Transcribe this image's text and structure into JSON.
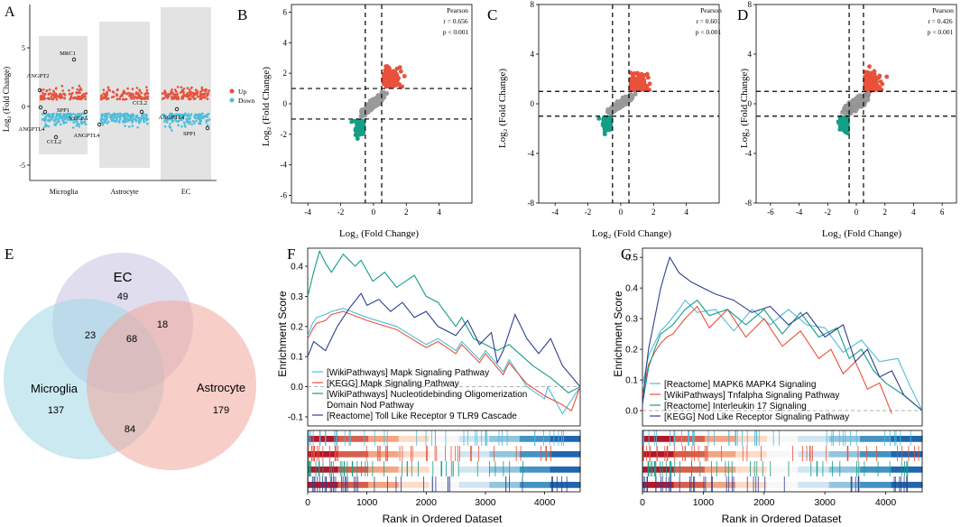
{
  "colors": {
    "up": "#e8513b",
    "down": "#4fbcd9",
    "teal": "#159e86",
    "navy": "#3a5a9c",
    "grey": "#999999",
    "light_blue": "#6cc3dc"
  },
  "panels": {
    "A": {
      "letter": "A",
      "ylabel": "Log₂ (Fold Change)"
    },
    "B": {
      "letter": "B",
      "pearson_title": "Pearson",
      "pearson_r": "r = 0.656",
      "pearson_p": "p < 0.001"
    },
    "C": {
      "letter": "C",
      "pearson_title": "Pearson",
      "pearson_r": "r = 0.601",
      "pearson_p": "p < 0.001"
    },
    "D": {
      "letter": "D",
      "pearson_title": "Pearson",
      "pearson_r": "r = 0.426",
      "pearson_p": "p < 0.001"
    },
    "E": {
      "letter": "E"
    },
    "F": {
      "letter": "F"
    },
    "G": {
      "letter": "G"
    }
  },
  "axis_label_fc": "Log₂ (Fold Change)",
  "gsea_axis": {
    "ylabel": "Enrichment Score",
    "xlabel": "Rank in Ordered Dataset"
  },
  "chart_data": [
    {
      "id": "A",
      "type": "scatter",
      "title": "",
      "xlabel": "",
      "ylabel": "Log2 (Fold Change)",
      "ylim": [
        -6.5,
        8
      ],
      "categories": [
        "Microglia",
        "Astrocyte",
        "EC"
      ],
      "yticks": [
        "-5",
        "0",
        "5"
      ],
      "legend": [
        {
          "name": "Up",
          "color": "#e8513b"
        },
        {
          "name": "Down",
          "color": "#4fbcd9"
        }
      ],
      "annotations": [
        "ANGPT2",
        "SPP1",
        "ANGPTL4",
        "CCL2",
        "MRC1",
        "VEGFA",
        "ANGPTL4",
        "CCL2",
        "ANGPTL4",
        "SPP1"
      ]
    },
    {
      "id": "B",
      "type": "scatter",
      "xlabel": "Log2 (Fold Change)",
      "ylabel": "Log2 (Fold Change)",
      "xlim": [
        -5,
        6
      ],
      "ylim": [
        -6.5,
        6.5
      ],
      "xticks": [
        "-4",
        "-2",
        "0",
        "2",
        "4"
      ],
      "yticks": [
        "-6",
        "-4",
        "-2",
        "0",
        "2",
        "4",
        "6"
      ],
      "pearson_r": 0.656,
      "pearson_p": "< 0.001",
      "thresholds": {
        "x": [
          -0.5,
          0.5
        ],
        "y": [
          -1,
          1
        ]
      }
    },
    {
      "id": "C",
      "type": "scatter",
      "xlabel": "Log2 (Fold Change)",
      "ylabel": "Log2 (Fold Change)",
      "xlim": [
        -5,
        6
      ],
      "ylim": [
        -8,
        8
      ],
      "xticks": [
        "-4",
        "-2",
        "0",
        "2",
        "4"
      ],
      "yticks": [
        "-8",
        "-4",
        "0",
        "4",
        "8"
      ],
      "pearson_r": 0.601,
      "pearson_p": "< 0.001",
      "thresholds": {
        "x": [
          -0.5,
          0.5
        ],
        "y": [
          -1,
          1
        ]
      }
    },
    {
      "id": "D",
      "type": "scatter",
      "xlabel": "Log2 (Fold Change)",
      "ylabel": "Log2 (Fold Change)",
      "xlim": [
        -7,
        7
      ],
      "ylim": [
        -8,
        8
      ],
      "xticks": [
        "-6",
        "-4",
        "-2",
        "0",
        "2",
        "4",
        "6"
      ],
      "yticks": [
        "-8",
        "-4",
        "0",
        "4",
        "8"
      ],
      "pearson_r": 0.426,
      "pearson_p": "< 0.001",
      "thresholds": {
        "x": [
          -0.5,
          0.5
        ],
        "y": [
          -1,
          1
        ]
      }
    },
    {
      "id": "E",
      "type": "venn",
      "sets": [
        {
          "name": "EC",
          "color": "#c7c1e0"
        },
        {
          "name": "Microglia",
          "color": "#9fd7e6"
        },
        {
          "name": "Astrocyte",
          "color": "#f2a59b"
        }
      ],
      "regions": [
        {
          "sets": [
            "EC"
          ],
          "value": 49
        },
        {
          "sets": [
            "Microglia"
          ],
          "value": 137
        },
        {
          "sets": [
            "Astrocyte"
          ],
          "value": 179
        },
        {
          "sets": [
            "EC",
            "Microglia"
          ],
          "value": 23
        },
        {
          "sets": [
            "EC",
            "Astrocyte"
          ],
          "value": 18
        },
        {
          "sets": [
            "Microglia",
            "Astrocyte"
          ],
          "value": 84
        },
        {
          "sets": [
            "EC",
            "Microglia",
            "Astrocyte"
          ],
          "value": 68
        }
      ]
    },
    {
      "id": "F",
      "type": "line",
      "title": "",
      "xlabel": "Rank in Ordered Dataset",
      "ylabel": "Enrichment Score",
      "xlim": [
        0,
        4600
      ],
      "ylim": [
        -0.13,
        0.46
      ],
      "xticks": [
        "0",
        "1000",
        "2000",
        "3000",
        "4000"
      ],
      "yticks": [
        "-0.1",
        "0.0",
        "0.1",
        "0.2",
        "0.3",
        "0.4"
      ],
      "series": [
        {
          "name": "[WikiPathways] Mapk Signaling Pathway",
          "color": "#4fbcd9",
          "x": [
            0,
            80,
            150,
            300,
            400,
            600,
            1000,
            1500,
            2000,
            2200,
            2500,
            2600,
            2900,
            3000,
            3300,
            3400,
            3700,
            4000,
            4050,
            4300,
            4600
          ],
          "y": [
            0.17,
            0.21,
            0.23,
            0.24,
            0.25,
            0.26,
            0.23,
            0.2,
            0.14,
            0.16,
            0.12,
            0.15,
            0.09,
            0.12,
            0.05,
            0.09,
            0.0,
            -0.04,
            0.0,
            -0.09,
            0.0
          ]
        },
        {
          "name": "[KEGG] Mapk Signaling Pathway",
          "color": "#e8513b",
          "x": [
            0,
            80,
            150,
            300,
            400,
            600,
            1000,
            1500,
            2000,
            2200,
            2500,
            2600,
            2900,
            3000,
            3300,
            3400,
            3700,
            4000,
            4300,
            4450,
            4600
          ],
          "y": [
            0.16,
            0.19,
            0.21,
            0.22,
            0.24,
            0.25,
            0.22,
            0.19,
            0.13,
            0.15,
            0.11,
            0.14,
            0.08,
            0.11,
            0.04,
            0.08,
            0.01,
            -0.03,
            -0.06,
            -0.08,
            0.0
          ]
        },
        {
          "name": "[WikiPathways] Nucleotidebinding Oligomerization Domain Nod Pathway",
          "color": "#159e86",
          "x": [
            0,
            100,
            200,
            300,
            400,
            600,
            800,
            900,
            1100,
            1300,
            1500,
            1800,
            2000,
            2200,
            2500,
            2600,
            2800,
            3200,
            3400,
            3800,
            4100,
            4400,
            4600
          ],
          "y": [
            0.3,
            0.38,
            0.45,
            0.41,
            0.38,
            0.44,
            0.4,
            0.42,
            0.35,
            0.38,
            0.33,
            0.37,
            0.3,
            0.28,
            0.2,
            0.23,
            0.16,
            0.12,
            0.14,
            0.07,
            0.03,
            -0.02,
            0.0
          ]
        },
        {
          "name": "[Reactome] Toll Like Receptor 9 TLR9 Cascade",
          "color": "#2e3f8f",
          "x": [
            0,
            100,
            300,
            500,
            700,
            900,
            1000,
            1200,
            1400,
            1600,
            1800,
            2000,
            2200,
            2500,
            2700,
            2900,
            3100,
            3200,
            3300,
            3500,
            3700,
            3900,
            4100,
            4300,
            4600
          ],
          "y": [
            0.1,
            0.15,
            0.12,
            0.2,
            0.26,
            0.31,
            0.27,
            0.29,
            0.25,
            0.28,
            0.23,
            0.25,
            0.2,
            0.17,
            0.22,
            0.14,
            0.18,
            0.08,
            0.12,
            0.24,
            0.16,
            0.11,
            0.16,
            0.07,
            0.0
          ]
        }
      ]
    },
    {
      "id": "G",
      "type": "line",
      "title": "",
      "xlabel": "Rank in Ordered Dataset",
      "ylabel": "Enrichment Score",
      "xlim": [
        0,
        4600
      ],
      "ylim": [
        -0.05,
        0.53
      ],
      "xticks": [
        "0",
        "1000",
        "2000",
        "3000",
        "4000"
      ],
      "yticks": [
        "0.0",
        "0.1",
        "0.2",
        "0.3",
        "0.4",
        "0.5"
      ],
      "series": [
        {
          "name": "[Reactome] MAPK6 MAPK4 Signaling",
          "color": "#4fbcd9",
          "x": [
            0,
            100,
            200,
            300,
            400,
            600,
            700,
            900,
            1200,
            1500,
            1800,
            2100,
            2400,
            2700,
            3000,
            3300,
            3600,
            3900,
            4200,
            4400,
            4600
          ],
          "y": [
            0.08,
            0.18,
            0.22,
            0.26,
            0.28,
            0.33,
            0.36,
            0.32,
            0.33,
            0.26,
            0.33,
            0.28,
            0.33,
            0.28,
            0.27,
            0.19,
            0.23,
            0.16,
            0.17,
            0.08,
            0.0
          ]
        },
        {
          "name": "[WikiPathways] Tnfalpha Signaling Pathway",
          "color": "#e8513b",
          "x": [
            0,
            100,
            200,
            300,
            400,
            500,
            700,
            900,
            1100,
            1400,
            1700,
            2000,
            2300,
            2600,
            2900,
            3100,
            3300,
            3500,
            3700,
            3900,
            4100
          ],
          "y": [
            0.05,
            0.15,
            0.19,
            0.22,
            0.24,
            0.25,
            0.3,
            0.34,
            0.27,
            0.33,
            0.24,
            0.3,
            0.21,
            0.26,
            0.17,
            0.2,
            0.12,
            0.16,
            0.07,
            0.09,
            -0.01
          ]
        },
        {
          "name": "[Reactome] Interleukin 17 Signaling",
          "color": "#159e86",
          "x": [
            0,
            100,
            200,
            300,
            500,
            700,
            900,
            1100,
            1400,
            1700,
            2000,
            2300,
            2600,
            2900,
            3200,
            3400,
            3600,
            3800,
            4000,
            4300,
            4600
          ],
          "y": [
            0.02,
            0.14,
            0.2,
            0.25,
            0.28,
            0.33,
            0.36,
            0.31,
            0.33,
            0.28,
            0.33,
            0.25,
            0.32,
            0.24,
            0.27,
            0.17,
            0.2,
            0.13,
            0.09,
            0.05,
            0.0
          ]
        },
        {
          "name": "[KEGG] Nod Like Receptor Signaling Pathway",
          "color": "#2e3f8f",
          "x": [
            0,
            50,
            100,
            200,
            300,
            400,
            450,
            600,
            800,
            1000,
            1200,
            1500,
            1800,
            2100,
            2400,
            2700,
            3000,
            3300,
            3500,
            3700,
            3900,
            4100,
            4300,
            4600
          ],
          "y": [
            0.02,
            0.12,
            0.2,
            0.3,
            0.4,
            0.47,
            0.5,
            0.45,
            0.42,
            0.4,
            0.38,
            0.36,
            0.32,
            0.34,
            0.28,
            0.32,
            0.24,
            0.28,
            0.16,
            0.2,
            0.11,
            0.13,
            0.05,
            0.0
          ]
        }
      ]
    }
  ]
}
